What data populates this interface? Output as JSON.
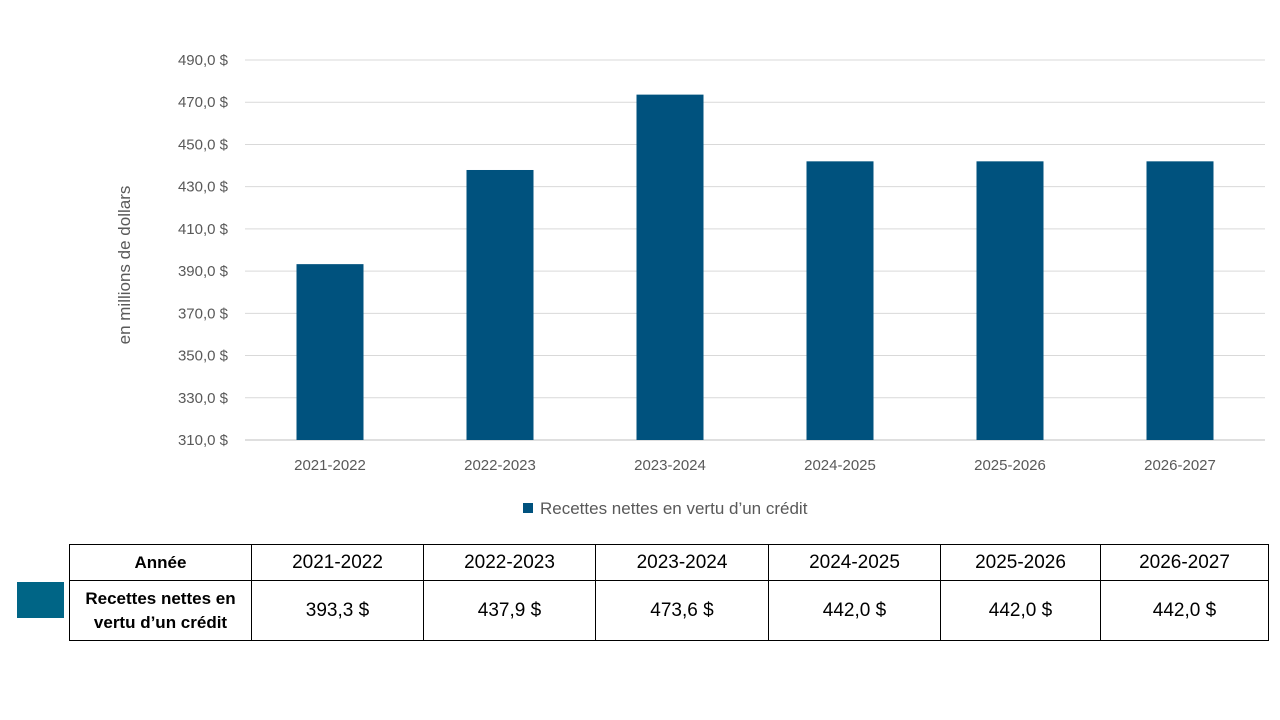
{
  "chart_data": {
    "type": "bar",
    "categories": [
      "2021-2022",
      "2022-2023",
      "2023-2024",
      "2024-2025",
      "2025-2026",
      "2026-2027"
    ],
    "series": [
      {
        "name": "Recettes nettes en vertu d’un crédit",
        "values": [
          393.3,
          437.9,
          473.6,
          442.0,
          442.0,
          442.0
        ],
        "color": "#00527E"
      }
    ],
    "ylabel": "en millions de dollars",
    "ylim": [
      310,
      490
    ],
    "yticks": [
      "310,0 $",
      "330,0 $",
      "350,0 $",
      "370,0 $",
      "390,0 $",
      "410,0 $",
      "430,0 $",
      "450,0 $",
      "470,0 $",
      "490,0 $"
    ],
    "grid": true,
    "legend": "bottom"
  },
  "table": {
    "header_label": "Année",
    "years": [
      "2021-2022",
      "2022-2023",
      "2023-2024",
      "2024-2025",
      "2025-2026",
      "2026-2027"
    ],
    "row_label": "Recettes nettes en vertu d’un crédit",
    "row_values": [
      "393,3 $",
      "437,9 $",
      "473,6 $",
      "442,0 $",
      "442,0 $",
      "442,0 $"
    ],
    "key_color": "#006586"
  }
}
